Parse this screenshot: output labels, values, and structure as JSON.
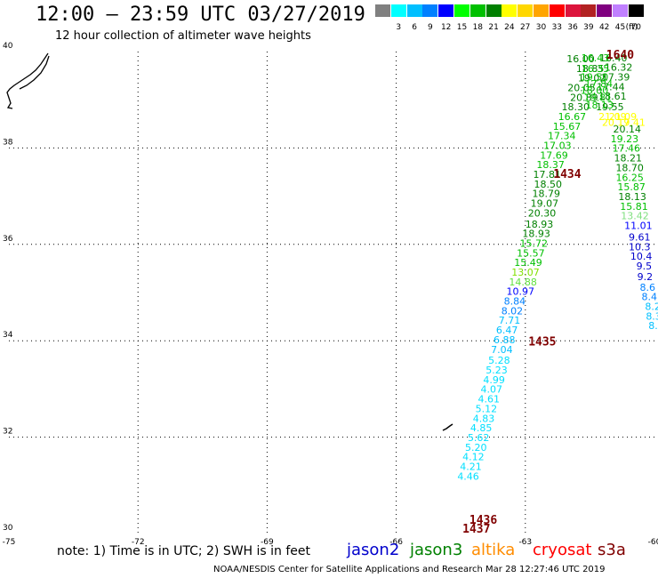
{
  "header": {
    "title": "12:00 – 23:59 UTC 03/27/2019",
    "subtitle": "12 hour collection of altimeter wave heights"
  },
  "scale": {
    "unit": "(ft)",
    "items": [
      {
        "label": "",
        "color": "#808080"
      },
      {
        "label": "3",
        "color": "#00ffff"
      },
      {
        "label": "6",
        "color": "#00bfff"
      },
      {
        "label": "9",
        "color": "#0080ff"
      },
      {
        "label": "12",
        "color": "#0000ff"
      },
      {
        "label": "15",
        "color": "#00ff00"
      },
      {
        "label": "18",
        "color": "#00c000"
      },
      {
        "label": "21",
        "color": "#008000"
      },
      {
        "label": "24",
        "color": "#ffff00"
      },
      {
        "label": "27",
        "color": "#ffd700"
      },
      {
        "label": "30",
        "color": "#ffa500"
      },
      {
        "label": "33",
        "color": "#ff0000"
      },
      {
        "label": "36",
        "color": "#dc143c"
      },
      {
        "label": "39",
        "color": "#b22222"
      },
      {
        "label": "42",
        "color": "#800080"
      },
      {
        "label": "45",
        "color": "#c080ff"
      },
      {
        "label": "70",
        "color": "#000000"
      }
    ]
  },
  "note": "note:  1) Time is in UTC;  2) SWH is in feet",
  "legend": [
    {
      "label": "jason2",
      "color": "#0000cc"
    },
    {
      "label": "jason3",
      "color": "#008000"
    },
    {
      "label": "altika",
      "color": "#ff8c00"
    },
    {
      "label": "cryosat",
      "color": "#ff0000"
    },
    {
      "label": "s3a",
      "color": "#800000"
    }
  ],
  "footer": "NOAA/NESDIS Center for Satellite Applications and Research    Mar 28 12:27:46 UTC 2019",
  "chart_data": {
    "type": "scatter",
    "title": "12:00 – 23:59 UTC 03/27/2019",
    "subtitle": "12 hour collection of altimeter wave heights",
    "xlim": [
      -75,
      -60
    ],
    "ylim": [
      30,
      40
    ],
    "x_ticks": [
      -75,
      -72,
      -69,
      -66,
      -63,
      -60
    ],
    "y_ticks": [
      30,
      32,
      34,
      36,
      38,
      40
    ],
    "grid": true,
    "series": [
      {
        "name": "jason3",
        "points": [
          {
            "lon": -62.04,
            "lat": 39.78,
            "v": "16.00",
            "c": "#008000"
          },
          {
            "lon": -61.82,
            "lat": 39.58,
            "v": "18.85",
            "c": "#008000"
          },
          {
            "lon": -61.78,
            "lat": 39.38,
            "v": "19.02",
            "c": "#008000"
          },
          {
            "lon": -62.02,
            "lat": 39.18,
            "v": "20.05",
            "c": "#008000"
          },
          {
            "lon": -61.96,
            "lat": 38.98,
            "v": "20.89",
            "c": "#008000"
          },
          {
            "lon": -62.16,
            "lat": 38.78,
            "v": "18.30",
            "c": "#008000"
          },
          {
            "lon": -62.24,
            "lat": 38.58,
            "v": "16.67",
            "c": "#00c000"
          },
          {
            "lon": -62.36,
            "lat": 38.38,
            "v": "15.67",
            "c": "#00c000"
          },
          {
            "lon": -62.48,
            "lat": 38.18,
            "v": "17.34",
            "c": "#00c000"
          },
          {
            "lon": -62.58,
            "lat": 37.98,
            "v": "17.03",
            "c": "#00c000"
          },
          {
            "lon": -62.66,
            "lat": 37.78,
            "v": "17.69",
            "c": "#00c000"
          },
          {
            "lon": -62.74,
            "lat": 37.58,
            "v": "18.37",
            "c": "#00c000"
          },
          {
            "lon": -62.82,
            "lat": 37.38,
            "v": "17.81",
            "c": "#008000"
          },
          {
            "lon": -62.8,
            "lat": 37.18,
            "v": "18.50",
            "c": "#008000"
          },
          {
            "lon": -62.84,
            "lat": 36.98,
            "v": "18.79",
            "c": "#008000"
          },
          {
            "lon": -62.88,
            "lat": 36.78,
            "v": "19.07",
            "c": "#008000"
          },
          {
            "lon": -62.94,
            "lat": 36.58,
            "v": "20.30",
            "c": "#008000"
          },
          {
            "lon": -63.0,
            "lat": 36.35,
            "v": "18.93",
            "c": "#008000"
          },
          {
            "lon": -63.07,
            "lat": 36.15,
            "v": "18.93",
            "c": "#008000"
          },
          {
            "lon": -63.13,
            "lat": 35.95,
            "v": "15.72",
            "c": "#00c000"
          },
          {
            "lon": -63.2,
            "lat": 35.75,
            "v": "15.57",
            "c": "#00c000"
          },
          {
            "lon": -63.26,
            "lat": 35.55,
            "v": "15.49",
            "c": "#00c000"
          },
          {
            "lon": -63.32,
            "lat": 35.35,
            "v": "13.07",
            "c": "#80e000"
          },
          {
            "lon": -63.38,
            "lat": 35.15,
            "v": "14.88",
            "c": "#60e040"
          },
          {
            "lon": -63.44,
            "lat": 34.95,
            "v": "10.97",
            "c": "#0000ff"
          },
          {
            "lon": -63.5,
            "lat": 34.75,
            "v": "8.84",
            "c": "#0080ff"
          },
          {
            "lon": -63.56,
            "lat": 34.55,
            "v": "8.02",
            "c": "#0080ff"
          },
          {
            "lon": -63.62,
            "lat": 34.35,
            "v": "7.71",
            "c": "#00bfff"
          },
          {
            "lon": -63.68,
            "lat": 34.15,
            "v": "6.47",
            "c": "#00bfff"
          },
          {
            "lon": -63.74,
            "lat": 33.95,
            "v": "6.88",
            "c": "#00bfff"
          },
          {
            "lon": -63.8,
            "lat": 33.75,
            "v": "7.04",
            "c": "#00bfff"
          },
          {
            "lon": -63.86,
            "lat": 33.52,
            "v": "5.28",
            "c": "#00dfff"
          },
          {
            "lon": -63.92,
            "lat": 33.32,
            "v": "5.23",
            "c": "#00dfff"
          },
          {
            "lon": -63.98,
            "lat": 33.12,
            "v": "4.99",
            "c": "#00dfff"
          },
          {
            "lon": -64.04,
            "lat": 32.92,
            "v": "4.07",
            "c": "#00dfff"
          },
          {
            "lon": -64.1,
            "lat": 32.72,
            "v": "4.61",
            "c": "#00dfff"
          },
          {
            "lon": -64.16,
            "lat": 32.52,
            "v": "5.12",
            "c": "#00dfff"
          },
          {
            "lon": -64.22,
            "lat": 32.32,
            "v": "4.83",
            "c": "#00dfff"
          },
          {
            "lon": -64.28,
            "lat": 32.12,
            "v": "4.85",
            "c": "#00dfff"
          },
          {
            "lon": -64.34,
            "lat": 31.92,
            "v": "5.62",
            "c": "#00dfff"
          },
          {
            "lon": -64.4,
            "lat": 31.72,
            "v": "5.20",
            "c": "#00dfff"
          },
          {
            "lon": -64.46,
            "lat": 31.52,
            "v": "4.12",
            "c": "#00dfff"
          },
          {
            "lon": -64.52,
            "lat": 31.32,
            "v": "4.21",
            "c": "#00dfff"
          },
          {
            "lon": -64.58,
            "lat": 31.12,
            "v": "4.46",
            "c": "#00dfff"
          }
        ]
      },
      {
        "name": "jason2",
        "points": [
          {
            "lon": -61.28,
            "lat": 39.8,
            "v": "16.40",
            "c": "#008000"
          },
          {
            "lon": -61.16,
            "lat": 39.6,
            "v": "16.32",
            "c": "#008000"
          },
          {
            "lon": -61.22,
            "lat": 39.4,
            "v": "17.39",
            "c": "#008000"
          },
          {
            "lon": -61.34,
            "lat": 39.2,
            "v": "17.44",
            "c": "#008000"
          },
          {
            "lon": -61.3,
            "lat": 39.0,
            "v": "18.61",
            "c": "#008000"
          },
          {
            "lon": -61.36,
            "lat": 38.78,
            "v": "19.55",
            "c": "#008000"
          },
          {
            "lon": -61.06,
            "lat": 38.58,
            "v": "21.09",
            "c": "#ffff00"
          },
          {
            "lon": -60.86,
            "lat": 38.46,
            "v": "17.41",
            "c": "#ffff00"
          },
          {
            "lon": -60.96,
            "lat": 38.32,
            "v": "20.14",
            "c": "#008000"
          },
          {
            "lon": -61.02,
            "lat": 38.12,
            "v": "19.23",
            "c": "#00c000"
          },
          {
            "lon": -60.98,
            "lat": 37.92,
            "v": "17.46",
            "c": "#00c000"
          },
          {
            "lon": -60.94,
            "lat": 37.72,
            "v": "18.21",
            "c": "#008000"
          },
          {
            "lon": -60.9,
            "lat": 37.52,
            "v": "18.70",
            "c": "#008000"
          },
          {
            "lon": -60.9,
            "lat": 37.32,
            "v": "16.25",
            "c": "#00c000"
          },
          {
            "lon": -60.86,
            "lat": 37.12,
            "v": "15.87",
            "c": "#00c000"
          },
          {
            "lon": -60.84,
            "lat": 36.92,
            "v": "18.13",
            "c": "#008000"
          },
          {
            "lon": -60.8,
            "lat": 36.72,
            "v": "15.81",
            "c": "#00c000"
          },
          {
            "lon": -60.78,
            "lat": 36.52,
            "v": "13.42",
            "c": "#80e080"
          },
          {
            "lon": -60.7,
            "lat": 36.32,
            "v": "11.01",
            "c": "#0000ff"
          },
          {
            "lon": -60.6,
            "lat": 36.08,
            "v": "9.61",
            "c": "#0000cc"
          },
          {
            "lon": -60.6,
            "lat": 35.88,
            "v": "10.3",
            "c": "#0000cc"
          },
          {
            "lon": -60.56,
            "lat": 35.68,
            "v": "10.4",
            "c": "#0000cc"
          },
          {
            "lon": -60.42,
            "lat": 35.48,
            "v": "9.5",
            "c": "#0000cc"
          },
          {
            "lon": -60.4,
            "lat": 35.26,
            "v": "9.2",
            "c": "#0000cc"
          },
          {
            "lon": -60.34,
            "lat": 35.04,
            "v": "8.6",
            "c": "#0080ff"
          },
          {
            "lon": -60.3,
            "lat": 34.84,
            "v": "8.4",
            "c": "#0080ff"
          },
          {
            "lon": -60.22,
            "lat": 34.64,
            "v": "8.2",
            "c": "#00bfff"
          },
          {
            "lon": -60.2,
            "lat": 34.44,
            "v": "8.3",
            "c": "#00bfff"
          },
          {
            "lon": -60.14,
            "lat": 34.24,
            "v": "8.1",
            "c": "#00bfff"
          }
        ]
      },
      {
        "name": "overlap",
        "points": [
          {
            "lon": -61.7,
            "lat": 39.8,
            "v": "16.43",
            "c": "#00c000"
          },
          {
            "lon": -61.7,
            "lat": 39.58,
            "v": "16.35",
            "c": "#00c000"
          },
          {
            "lon": -61.72,
            "lat": 39.4,
            "v": "19.50",
            "c": "#00c000"
          },
          {
            "lon": -61.62,
            "lat": 39.26,
            "v": "17.84",
            "c": "#00c000"
          },
          {
            "lon": -61.72,
            "lat": 39.12,
            "v": "18.00",
            "c": "#00c000"
          },
          {
            "lon": -61.64,
            "lat": 38.98,
            "v": "19.81",
            "c": "#00c000"
          },
          {
            "lon": -61.6,
            "lat": 38.82,
            "v": "18.13",
            "c": "#00c000"
          },
          {
            "lon": -61.3,
            "lat": 38.58,
            "v": "21.09",
            "c": "#ffff00"
          },
          {
            "lon": -61.22,
            "lat": 38.46,
            "v": "20.19",
            "c": "#ffff00"
          }
        ]
      }
    ],
    "time_labels": [
      {
        "lon": -61.12,
        "lat": 39.85,
        "t": "1640"
      },
      {
        "lon": -62.35,
        "lat": 37.38,
        "t": "1434"
      },
      {
        "lon": -62.93,
        "lat": 33.9,
        "t": "1435"
      },
      {
        "lon": -64.3,
        "lat": 30.2,
        "t": "1436"
      },
      {
        "lon": -64.46,
        "lat": 30.02,
        "t": "1437"
      }
    ]
  }
}
